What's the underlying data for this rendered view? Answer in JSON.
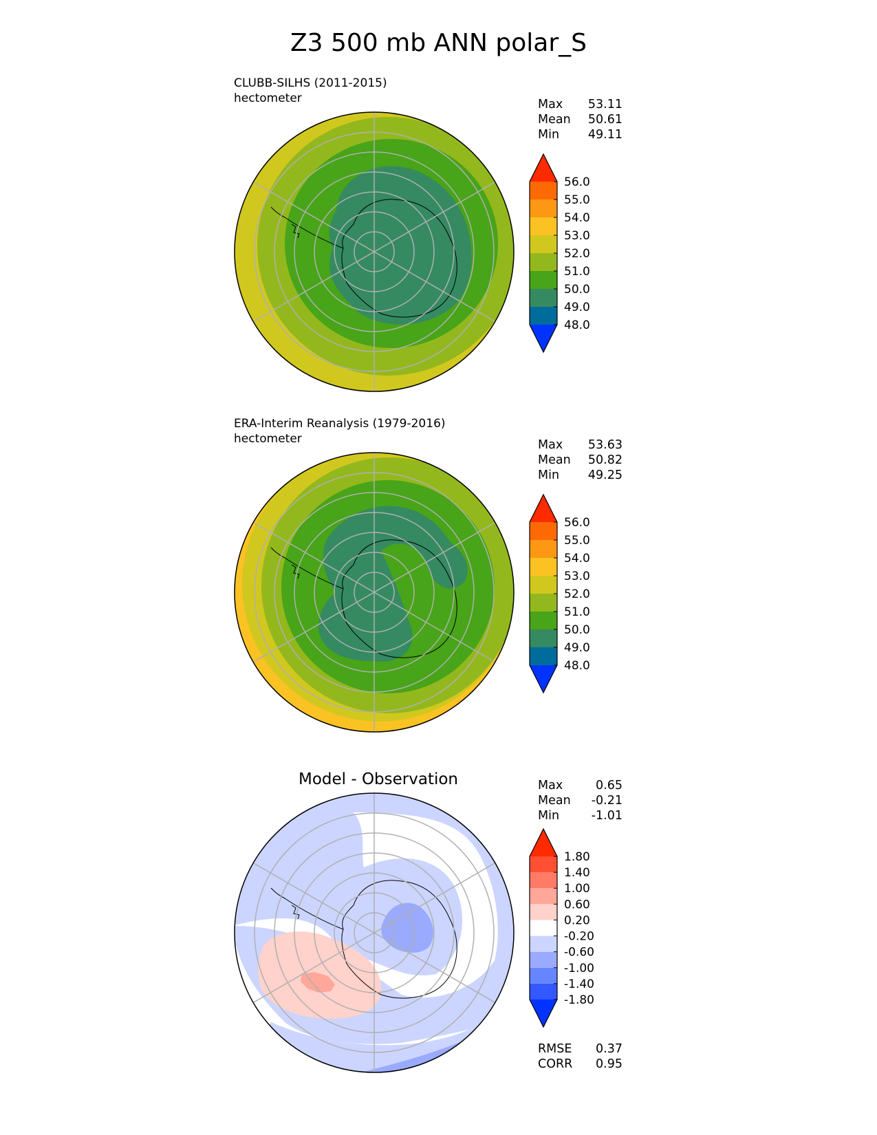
{
  "title": "Z3 500 mb ANN polar_S",
  "panels": [
    {
      "id": "model",
      "title_line1": "CLUBB-SILHS (2011-2015)",
      "title_line2": "hectometer",
      "stats": [
        {
          "label": "Max",
          "value": "53.11"
        },
        {
          "label": "Mean",
          "value": "50.61"
        },
        {
          "label": "Min",
          "value": "49.11"
        }
      ]
    },
    {
      "id": "obs",
      "title_line1": "ERA-Interim Reanalysis (1979-2016)",
      "title_line2": "hectometer",
      "stats": [
        {
          "label": "Max",
          "value": "53.63"
        },
        {
          "label": "Mean",
          "value": "50.82"
        },
        {
          "label": "Min",
          "value": "49.25"
        }
      ]
    },
    {
      "id": "diff",
      "title": "Model - Observation",
      "stats": [
        {
          "label": "Max",
          "value": "0.65"
        },
        {
          "label": "Mean",
          "value": "-0.21"
        },
        {
          "label": "Min",
          "value": "-1.01"
        }
      ],
      "metrics": [
        {
          "label": "RMSE",
          "value": "0.37"
        },
        {
          "label": "CORR",
          "value": "0.95"
        }
      ]
    }
  ],
  "chart_data": [
    {
      "type": "heatmap",
      "title": "CLUBB-SILHS (2011-2015)",
      "units": "hectometer",
      "projection": "south-polar-stereographic",
      "levels": [
        48.0,
        49.0,
        50.0,
        51.0,
        52.0,
        53.0,
        54.0,
        55.0,
        56.0
      ],
      "tick_labels": [
        "48.0",
        "49.0",
        "50.0",
        "51.0",
        "52.0",
        "53.0",
        "54.0",
        "55.0",
        "56.0"
      ],
      "colors": [
        "#0033ff",
        "#006c9c",
        "#358a62",
        "#48a418",
        "#93b81d",
        "#d1c81f",
        "#fbc224",
        "#fd9815",
        "#fd6a05",
        "#ff2a00"
      ],
      "max": 53.11,
      "mean": 50.61,
      "min": 49.11
    },
    {
      "type": "heatmap",
      "title": "ERA-Interim Reanalysis (1979-2016)",
      "units": "hectometer",
      "projection": "south-polar-stereographic",
      "levels": [
        48.0,
        49.0,
        50.0,
        51.0,
        52.0,
        53.0,
        54.0,
        55.0,
        56.0
      ],
      "tick_labels": [
        "48.0",
        "49.0",
        "50.0",
        "51.0",
        "52.0",
        "53.0",
        "54.0",
        "55.0",
        "56.0"
      ],
      "colors": [
        "#0033ff",
        "#006c9c",
        "#358a62",
        "#48a418",
        "#93b81d",
        "#d1c81f",
        "#fbc224",
        "#fd9815",
        "#fd6a05",
        "#ff2a00"
      ],
      "max": 53.63,
      "mean": 50.82,
      "min": 49.25
    },
    {
      "type": "heatmap",
      "title": "Model - Observation",
      "projection": "south-polar-stereographic",
      "levels": [
        -1.8,
        -1.4,
        -1.0,
        -0.6,
        -0.2,
        0.2,
        0.6,
        1.0,
        1.4,
        1.8
      ],
      "tick_labels": [
        "-1.80",
        "-1.40",
        "-1.00",
        "-0.60",
        "-0.20",
        "0.20",
        "0.60",
        "1.00",
        "1.40",
        "1.80"
      ],
      "colors": [
        "#0033ff",
        "#3358ff",
        "#6686ff",
        "#99aaff",
        "#cbd5ff",
        "#ffffff",
        "#ffd2cb",
        "#ffa799",
        "#ff7b66",
        "#ff5033",
        "#ff2a00"
      ],
      "max": 0.65,
      "mean": -0.21,
      "min": -1.01,
      "rmse": 0.37,
      "corr": 0.95
    }
  ]
}
